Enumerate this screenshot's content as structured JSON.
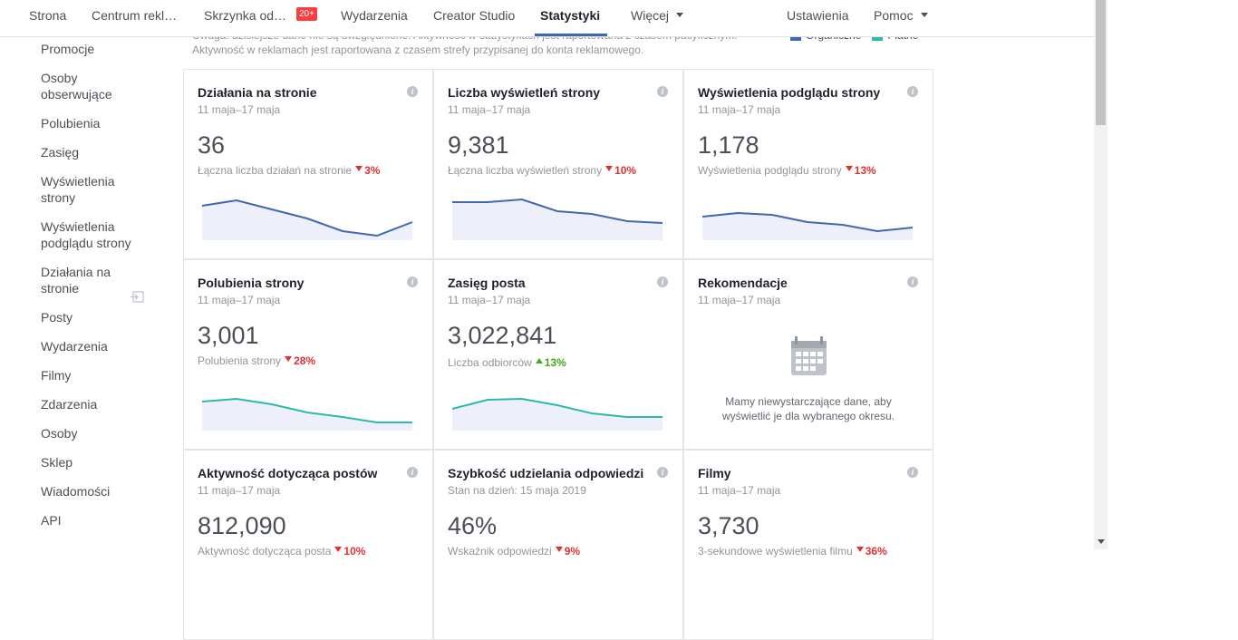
{
  "nav": {
    "items": [
      "Strona",
      "Centrum rekl…",
      "Skrzynka od…",
      "Wydarzenia",
      "Creator Studio",
      "Statystyki",
      "Więcej"
    ],
    "badge": "20+",
    "active": 5,
    "right": [
      "Ustawienia",
      "Pomoc"
    ]
  },
  "sidebar": {
    "items": [
      "Promocje",
      "Osoby obserwujące",
      "Polubienia",
      "Zasięg",
      "Wyświetlenia strony",
      "Wyświetlenia podglądu strony",
      "Działania na stronie",
      "Posty",
      "Wydarzenia",
      "Filmy",
      "Zdarzenia",
      "Osoby",
      "Sklep",
      "Wiadomości",
      "API"
    ]
  },
  "notice": {
    "lines": [
      "Uwaga: dzisiejsze dane nie są uwzględnione. Aktywność w statystykach jest raportowana z czasem pacyficznym.",
      "Aktywność w reklamach jest raportowana z czasem strefy przypisanej do konta reklamowego."
    ]
  },
  "legend": {
    "items": [
      {
        "name": "Organiczne",
        "color": "#4267b2"
      },
      {
        "name": "Płatne",
        "color": "#2abba7"
      }
    ]
  },
  "cards": [
    {
      "title": "Działania na stronie",
      "date": "11 maja–17 maja",
      "value": "36",
      "caption": "Łączna liczba działań na stronie",
      "change": "3%",
      "trend": "down"
    },
    {
      "title": "Liczba wyświetleń strony",
      "date": "11 maja–17 maja",
      "value": "9,381",
      "caption": "Łączna liczba wyświetleń strony",
      "change": "10%",
      "trend": "down"
    },
    {
      "title": "Wyświetlenia podglądu strony",
      "date": "11 maja–17 maja",
      "value": "1,178",
      "caption": "Wyświetlenia podglądu strony",
      "change": "13%",
      "trend": "down"
    },
    {
      "title": "Polubienia strony",
      "date": "11 maja–17 maja",
      "value": "3,001",
      "caption": "Polubienia strony",
      "change": "28%",
      "trend": "down"
    },
    {
      "title": "Zasięg posta",
      "date": "11 maja–17 maja",
      "value": "3,022,841",
      "caption": "Liczba odbiorców",
      "change": "13%",
      "trend": "up"
    },
    {
      "title": "Rekomendacje",
      "date": "11 maja–17 maja",
      "message": "Mamy niewystarczające dane, aby wyświetlić je dla wybranego okresu."
    },
    {
      "title": "Aktywność dotycząca postów",
      "date": "11 maja–17 maja",
      "value": "812,090",
      "caption": "Aktywność dotycząca posta",
      "change": "10%",
      "trend": "down"
    },
    {
      "title": "Szybkość udzielania odpowiedzi",
      "date": "Stan na dzień: 15 maja 2019",
      "value": "46%",
      "caption": "Wskaźnik odpowiedzi",
      "change": "9%",
      "trend": "down"
    },
    {
      "title": "Filmy",
      "date": "11 maja–17 maja",
      "value": "3,730",
      "caption": "3-sekundowe wyświetlenia filmu",
      "change": "36%",
      "trend": "down"
    }
  ]
}
